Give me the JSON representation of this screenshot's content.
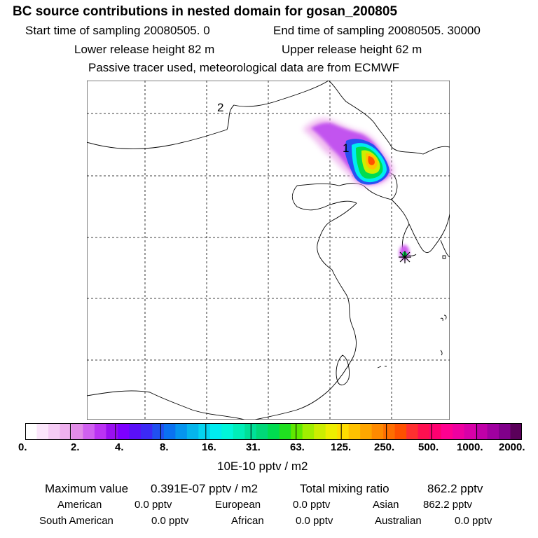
{
  "header": {
    "title": "BC  source contributions in nested domain for gosan_200805",
    "start_time": "Start time of sampling 20080505.     0",
    "end_time": "End time of sampling 20080505. 30000",
    "lower_release": "Lower release height   82 m",
    "upper_release": "Upper release height   62 m",
    "tracer_note": "Passive tracer used, meteorological data are from ECMWF"
  },
  "map": {
    "domain_labels": [
      "2",
      "1"
    ]
  },
  "colorbar": {
    "tick_labels": [
      "0.",
      "2.",
      "4.",
      "8.",
      "16.",
      "31.",
      "63.",
      "125.",
      "250.",
      "500.",
      "1000.",
      "2000."
    ],
    "units": "10E-10 pptv / m2",
    "colors": [
      "#ffffff",
      "#fbe6fb",
      "#f5ccf5",
      "#eeb0ee",
      "#e28ce8",
      "#d060f0",
      "#bb33f3",
      "#9a10f0",
      "#7d00ff",
      "#5a10f8",
      "#3c2af5",
      "#2050f0",
      "#0a72f0",
      "#0595ee",
      "#05b5ec",
      "#05d4f0",
      "#00ecf0",
      "#00f6da",
      "#00eeb8",
      "#00e098",
      "#00d878",
      "#00dc50",
      "#20e020",
      "#60e800",
      "#a0ee00",
      "#ccee00",
      "#eeee00",
      "#ffdd00",
      "#ffc200",
      "#ffa600",
      "#ff8a00",
      "#ff6e00",
      "#ff5000",
      "#ff3030",
      "#ff1050",
      "#ff0070",
      "#ff0090",
      "#ee00a0",
      "#d800a8",
      "#c000a8",
      "#a000a0",
      "#80008a",
      "#5a005a"
    ]
  },
  "stats": {
    "max_label": "Maximum value",
    "max_value": "0.391E-07 pptv / m2",
    "total_label": "Total mixing ratio",
    "total_value": "862.2 pptv",
    "regions": [
      {
        "name": "American",
        "value": "0.0 pptv"
      },
      {
        "name": "European",
        "value": "0.0 pptv"
      },
      {
        "name": "Asian",
        "value": "862.2 pptv"
      },
      {
        "name": "South American",
        "value": "0.0 pptv"
      },
      {
        "name": "African",
        "value": "0.0 pptv"
      },
      {
        "name": "Australian",
        "value": "0.0 pptv"
      }
    ]
  }
}
